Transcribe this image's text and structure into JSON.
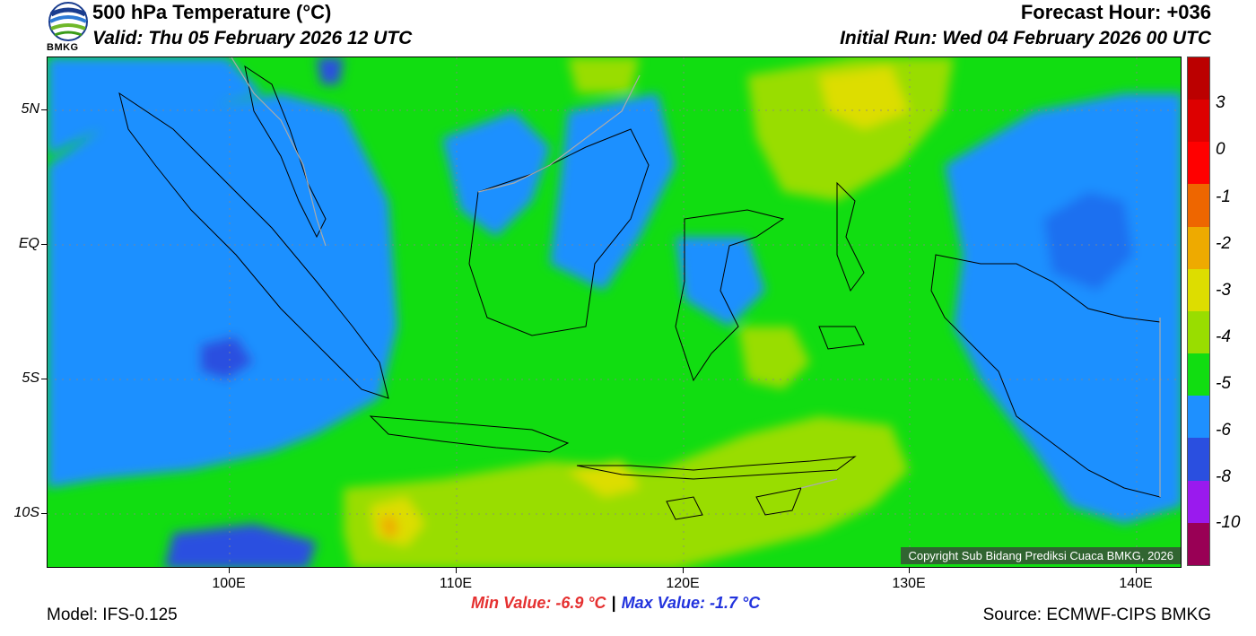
{
  "header": {
    "title": "500 hPa Temperature (°C)",
    "valid": "Valid: Thu 05 February 2026 12 UTC",
    "forecast_hour": "Forecast Hour: +036",
    "initial_run": "Initial Run: Wed 04 February 2026 00 UTC"
  },
  "logo": {
    "text": "BMKG"
  },
  "map": {
    "lat_labels": [
      "5N",
      "EQ",
      "5S",
      "10S"
    ],
    "lon_labels": [
      "100E",
      "110E",
      "120E",
      "130E",
      "140E"
    ],
    "copyright": "Copyright Sub Bidang Prediksi Cuaca BMKG, 2026"
  },
  "colorbar": {
    "labels": [
      "3",
      "0",
      "-1",
      "-2",
      "-3",
      "-4",
      "-5",
      "-6",
      "-8",
      "-10"
    ],
    "colors": [
      "#bb0000",
      "#dd0000",
      "#ff0000",
      "#ee6600",
      "#eeaa00",
      "#dddd00",
      "#99dd00",
      "#11dd11",
      "#1e90ff",
      "#2a4fe0",
      "#9a1aee",
      "#990055"
    ]
  },
  "footer": {
    "min_value": "Min Value: -6.9 °C",
    "separator": "|",
    "max_value": "Max Value: -1.7 °C",
    "model": "Model: IFS-0.125",
    "source": "Source: ECMWF-CIPS BMKG"
  }
}
